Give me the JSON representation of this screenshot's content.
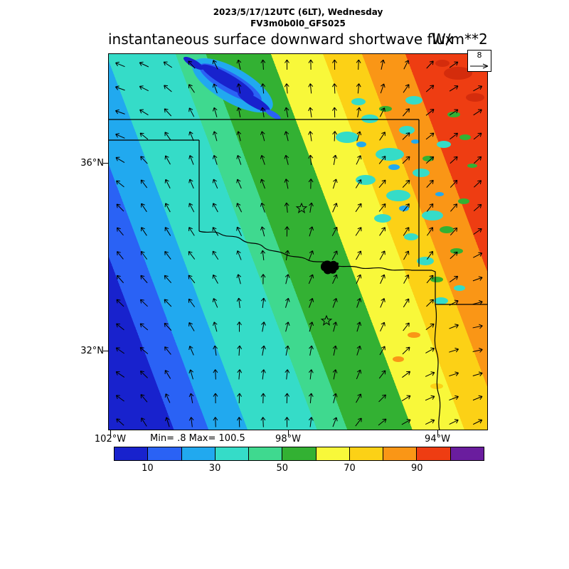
{
  "header": {
    "line1": "2023/5/17/12UTC (6LT), Wednesday",
    "line2": "FV3m0b0l0_GFS025"
  },
  "title": {
    "text": "instantaneous surface downward shortwave flux",
    "units": "W/m**2"
  },
  "axes": {
    "lat": [
      {
        "label": "36°N"
      },
      {
        "label": "32°N"
      }
    ],
    "lon": [
      {
        "label": "102°W"
      },
      {
        "label": "98°W"
      },
      {
        "label": "94°W"
      }
    ]
  },
  "stats": {
    "text": "Min= .8 Max= 100.5"
  },
  "wind_ref": {
    "value": "8"
  },
  "colorbar": {
    "colors": [
      "#1822cd",
      "#2a62f5",
      "#21a9ef",
      "#35dcc8",
      "#3fd98f",
      "#33b133",
      "#f8f83a",
      "#fcd116",
      "#fa9616",
      "#ee3d12",
      "#6a1d9e"
    ],
    "ticks": [
      "10",
      "30",
      "50",
      "70",
      "90"
    ]
  },
  "chart_data": {
    "type": "heatmap",
    "title": "instantaneous surface downward shortwave flux",
    "units": "W/m**2",
    "valid_time": "2023/5/17/12UTC (6LT), Wednesday",
    "model": "FV3m0b0l0_GFS025",
    "min": 0.8,
    "max": 100.5,
    "x_ticks_lon_deg_west": [
      102,
      98,
      94
    ],
    "y_ticks_lat_deg_north": [
      36,
      32
    ],
    "colorbar_levels": [
      0,
      10,
      20,
      30,
      40,
      50,
      60,
      70,
      80,
      90,
      100,
      110
    ],
    "colorbar_tick_labels": [
      10,
      30,
      50,
      70,
      90
    ],
    "colorbar_colors": [
      "#1822cd",
      "#2a62f5",
      "#21a9ef",
      "#35dcc8",
      "#3fd98f",
      "#33b133",
      "#f8f83a",
      "#fcd116",
      "#fa9616",
      "#ee3d12",
      "#6a1d9e"
    ],
    "wind_reference_speed": 8,
    "flux_band_values_sw_to_ne": [
      5,
      15,
      25,
      35,
      45,
      55,
      65,
      75,
      85,
      95
    ],
    "overlay": "wind vector field drawn as small arrows on a ~33 px grid; arrows rotate from west/northwest-pointing in the southwest to northeast/east-pointing in the northeast",
    "features": [
      "dark-blue low-flux cloud streak in the northwest (Texas/Oklahoma panhandle area)",
      "scattered teal/cyan/green cloud-reduced patches across eastern Oklahoma and northeast Texas",
      "red high-flux core in the northeast corner",
      "state borders: Kansas-Oklahoma 37N line, Oklahoma panhandle, Texas 100W panhandle border, Red River, Texas-Arkansas-Louisiana borders",
      "two open star markers and one filled black marker cluster along the Red River"
    ]
  }
}
